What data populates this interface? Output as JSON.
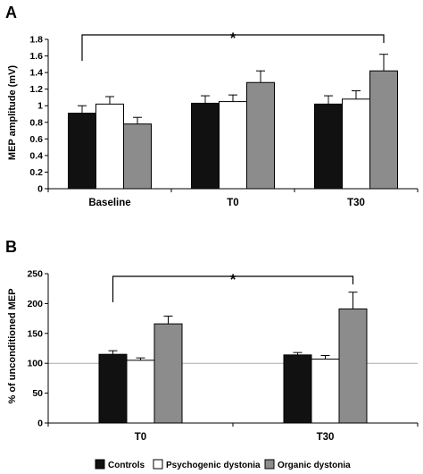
{
  "legend": [
    {
      "name": "Controls",
      "color": "#111111"
    },
    {
      "name": "Psychogenic dystonia",
      "color": "#ffffff"
    },
    {
      "name": "Organic dystonia",
      "color": "#8c8c8c"
    }
  ],
  "chart_data": [
    {
      "type": "bar",
      "panel": "A",
      "ylabel": "MEP amplitude (mV)",
      "xlabel": "",
      "categories": [
        "Baseline",
        "T0",
        "T30"
      ],
      "ylim": [
        0,
        1.8
      ],
      "yticks": [
        0,
        0.2,
        0.4,
        0.6,
        0.8,
        1,
        1.2,
        1.4,
        1.6,
        1.8
      ],
      "ytick_labels": [
        "0",
        "0.2",
        "0.4",
        "0.6",
        "0.8",
        "1",
        "1.2",
        "1.4",
        "1.6",
        "1.8"
      ],
      "series": [
        {
          "name": "Controls",
          "values": [
            0.91,
            1.03,
            1.02
          ],
          "errors": [
            0.09,
            0.09,
            0.1
          ]
        },
        {
          "name": "Psychogenic dystonia",
          "values": [
            1.02,
            1.05,
            1.08
          ],
          "errors": [
            0.09,
            0.08,
            0.1
          ]
        },
        {
          "name": "Organic dystonia",
          "values": [
            0.78,
            1.28,
            1.42
          ],
          "errors": [
            0.08,
            0.14,
            0.2
          ]
        }
      ],
      "significance": {
        "label": "*",
        "from": {
          "category": 0,
          "series": 0
        },
        "to": {
          "category": 2,
          "series": 2
        }
      }
    },
    {
      "type": "bar",
      "panel": "B",
      "ylabel": "% of unconditioned MEP",
      "xlabel": "",
      "categories": [
        "T0",
        "T30"
      ],
      "ylim": [
        0,
        250
      ],
      "yticks": [
        0,
        50,
        100,
        150,
        200,
        250
      ],
      "ytick_labels": [
        "0",
        "50",
        "100",
        "150",
        "200",
        "250"
      ],
      "reference_line": 100,
      "series": [
        {
          "name": "Controls",
          "values": [
            115,
            114
          ],
          "errors": [
            6,
            4
          ]
        },
        {
          "name": "Psychogenic dystonia",
          "values": [
            105,
            107
          ],
          "errors": [
            4,
            6
          ]
        },
        {
          "name": "Organic dystonia",
          "values": [
            166,
            191
          ],
          "errors": [
            13,
            28
          ]
        }
      ],
      "significance": {
        "label": "*",
        "from": {
          "category": 0,
          "series": 0
        },
        "to": {
          "category": 1,
          "series": 2
        }
      }
    }
  ]
}
